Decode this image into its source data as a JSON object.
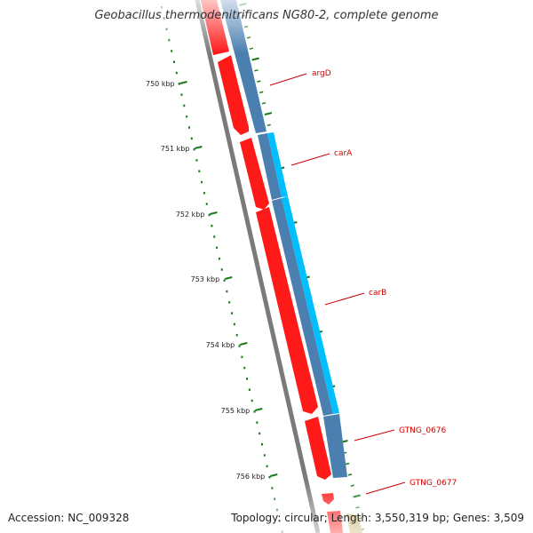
{
  "title": "Geobacillus thermodenitrificans NG80-2, complete genome",
  "footer": {
    "accession_label": "Accession:",
    "accession": "NC_009328",
    "topology_label": "Topology:",
    "topology": "circular",
    "length_label": "Length:",
    "length": "3,550,319 bp",
    "genes_label": "Genes:",
    "genes": "3,509"
  },
  "colors": {
    "forward_cds": "#ff0000",
    "reverse_highlight": "#00bfff",
    "reverse_gene": "#4682b4",
    "backbone": "#808080",
    "tick": "#1a7a1a",
    "label": "#cc0000"
  },
  "ticks": [
    {
      "label": "750 kbp"
    },
    {
      "label": "751 kbp"
    },
    {
      "label": "752 kbp"
    },
    {
      "label": "753 kbp"
    },
    {
      "label": "754 kbp"
    },
    {
      "label": "755 kbp"
    },
    {
      "label": "756 kbp"
    }
  ],
  "gene_labels": [
    {
      "name": "argD"
    },
    {
      "name": "carA"
    },
    {
      "name": "carB"
    },
    {
      "name": "GTNG_0676"
    },
    {
      "name": "GTNG_0677"
    }
  ]
}
